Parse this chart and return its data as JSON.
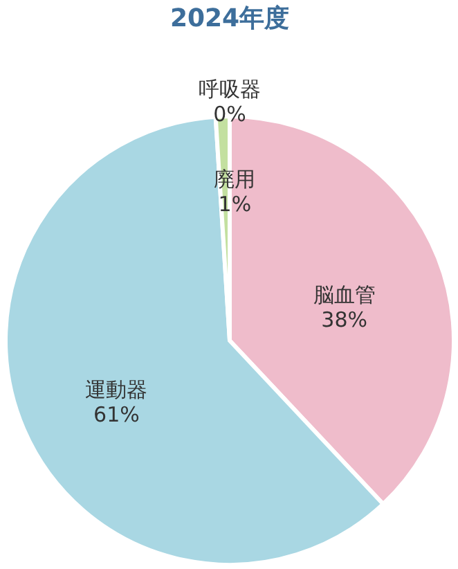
{
  "chart_data": {
    "type": "pie",
    "title": "2024年度",
    "categories": [
      "脳血管",
      "運動器",
      "廃用",
      "呼吸器"
    ],
    "values": [
      38,
      61,
      1,
      0
    ],
    "value_labels": [
      "38%",
      "61%",
      "1%",
      "0%"
    ],
    "colors": [
      "#efbccb",
      "#a9d7e3",
      "#c3e0a0",
      "#f3d28c"
    ]
  }
}
